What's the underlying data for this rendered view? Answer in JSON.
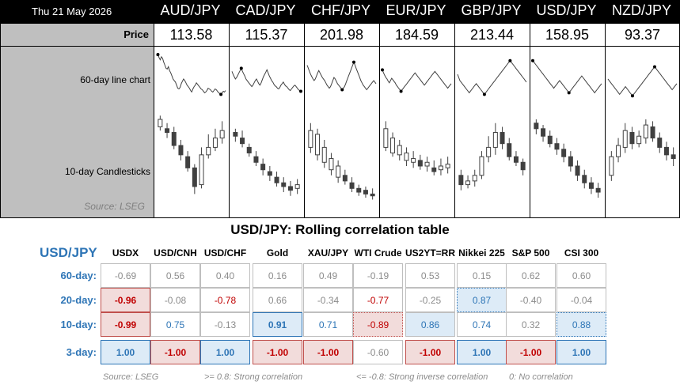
{
  "header": {
    "date": "Thu 21 May 2026",
    "pairs": [
      "AUD/JPY",
      "CAD/JPY",
      "CHF/JPY",
      "EUR/JPY",
      "GBP/JPY",
      "USD/JPY",
      "NZD/JPY"
    ]
  },
  "prices": {
    "label": "Price",
    "values": [
      "113.58",
      "115.37",
      "201.98",
      "184.59",
      "213.44",
      "158.95",
      "93.37"
    ]
  },
  "row_labels": {
    "line": "60-day line chart",
    "candle": "10-day Candlesticks",
    "source": "Source: LSEG"
  },
  "correlation": {
    "title": "USD/JPY: Rolling correlation table",
    "pair": "USD/JPY",
    "columns": [
      "USDX",
      "USD/CNH",
      "USD/CHF",
      "Gold",
      "XAU/JPY",
      "WTI Crude",
      "US2YT=RR",
      "Nikkei 225",
      "S&P 500",
      "CSI 300"
    ],
    "rows": [
      {
        "label": "60-day:",
        "values": [
          "-0.69",
          "0.56",
          "0.40",
          "0.16",
          "0.49",
          "-0.19",
          "0.53",
          "0.15",
          "0.62",
          "0.60"
        ]
      },
      {
        "label": "20-day:",
        "values": [
          "-0.96",
          "-0.08",
          "-0.78",
          "0.66",
          "-0.34",
          "-0.77",
          "-0.25",
          "0.87",
          "-0.40",
          "-0.04"
        ]
      },
      {
        "label": "10-day:",
        "values": [
          "-0.99",
          "0.75",
          "-0.13",
          "0.91",
          "0.71",
          "-0.89",
          "0.86",
          "0.74",
          "0.32",
          "0.88"
        ]
      },
      {
        "label": "3-day:",
        "values": [
          "1.00",
          "-1.00",
          "1.00",
          "-1.00",
          "-1.00",
          "-0.60",
          "-1.00",
          "1.00",
          "-1.00",
          "1.00"
        ]
      }
    ],
    "footer": {
      "source": "Source: LSEG",
      "strong": ">= 0.8: Strong correlation",
      "inverse": "<= -0.8: Strong inverse correlation",
      "none": "0: No correlation"
    }
  },
  "colors": {
    "blue": "#2e75b6",
    "red": "#c00000",
    "fill_red": "#f2dcdb",
    "fill_blue": "#ddebf7"
  },
  "charts": [
    {
      "line": [
        60,
        62,
        58,
        55,
        59,
        57,
        52,
        48,
        44,
        43,
        46,
        41,
        38,
        34,
        30,
        28,
        26,
        22,
        18,
        17,
        19,
        24,
        27,
        30,
        28,
        25,
        22,
        20,
        18,
        15,
        13,
        17,
        20,
        22,
        25,
        23,
        21,
        19,
        17,
        16,
        14,
        12,
        13,
        15,
        18,
        17,
        16,
        14,
        13,
        15,
        17,
        16,
        14,
        12,
        11,
        10,
        12,
        14,
        13,
        15
      ],
      "candles": [
        [
          92,
          100,
          88,
          104
        ],
        [
          90,
          86,
          80,
          96
        ],
        [
          86,
          72,
          68,
          92
        ],
        [
          72,
          62,
          56,
          78
        ],
        [
          60,
          48,
          44,
          66
        ],
        [
          48,
          28,
          20,
          52
        ],
        [
          30,
          62,
          26,
          70
        ],
        [
          62,
          70,
          58,
          84
        ],
        [
          70,
          80,
          66,
          90
        ],
        [
          80,
          88,
          74,
          98
        ]
      ]
    },
    {
      "line": [
        40,
        36,
        33,
        30,
        32,
        35,
        38,
        41,
        44,
        40,
        37,
        34,
        30,
        28,
        26,
        24,
        22,
        20,
        22,
        25,
        28,
        30,
        27,
        24,
        22,
        25,
        29,
        33,
        36,
        39,
        42,
        38,
        34,
        31,
        28,
        26,
        23,
        21,
        20,
        18,
        17,
        19,
        22,
        24,
        26,
        23,
        21,
        20,
        18,
        16,
        15,
        17,
        19,
        21,
        22,
        20,
        18,
        16,
        15,
        14
      ],
      "candles": [
        [
          86,
          82,
          76,
          90
        ],
        [
          80,
          74,
          70,
          88
        ],
        [
          70,
          64,
          60,
          74
        ],
        [
          60,
          54,
          50,
          66
        ],
        [
          52,
          46,
          40,
          58
        ],
        [
          44,
          40,
          34,
          50
        ],
        [
          38,
          32,
          28,
          44
        ],
        [
          32,
          28,
          22,
          38
        ],
        [
          28,
          24,
          18,
          34
        ],
        [
          26,
          30,
          20,
          36
        ]
      ]
    },
    {
      "line": [
        48,
        44,
        40,
        36,
        33,
        30,
        28,
        30,
        34,
        38,
        41,
        38,
        35,
        32,
        30,
        28,
        25,
        22,
        20,
        18,
        20,
        24,
        28,
        32,
        30,
        27,
        24,
        22,
        20,
        18,
        16,
        18,
        20,
        24,
        28,
        32,
        36,
        40,
        44,
        48,
        52,
        48,
        44,
        40,
        36,
        32,
        28,
        25,
        22,
        20,
        18,
        16,
        18,
        20,
        22,
        24,
        26,
        28,
        26,
        24
      ],
      "candles": [
        [
          70,
          88,
          64,
          96
        ],
        [
          62,
          84,
          56,
          90
        ],
        [
          54,
          70,
          48,
          78
        ],
        [
          46,
          58,
          40,
          64
        ],
        [
          38,
          50,
          32,
          56
        ],
        [
          40,
          34,
          30,
          46
        ],
        [
          32,
          26,
          22,
          38
        ],
        [
          26,
          22,
          18,
          30
        ],
        [
          24,
          20,
          16,
          28
        ],
        [
          20,
          18,
          14,
          26
        ]
      ]
    },
    {
      "line": [
        42,
        38,
        35,
        32,
        30,
        27,
        25,
        28,
        31,
        29,
        27,
        25,
        22,
        20,
        18,
        16,
        14,
        16,
        18,
        20,
        22,
        24,
        26,
        28,
        30,
        32,
        34,
        36,
        38,
        36,
        34,
        32,
        30,
        28,
        26,
        24,
        22,
        24,
        26,
        28,
        30,
        32,
        34,
        36,
        38,
        40,
        38,
        36,
        34,
        32,
        30,
        28,
        26,
        24,
        22,
        20,
        18,
        20,
        22,
        24
      ],
      "candles": [
        [
          70,
          90,
          66,
          98
        ],
        [
          64,
          80,
          60,
          86
        ],
        [
          62,
          72,
          56,
          78
        ],
        [
          56,
          64,
          50,
          70
        ],
        [
          54,
          58,
          48,
          66
        ],
        [
          56,
          50,
          46,
          62
        ],
        [
          50,
          54,
          44,
          60
        ],
        [
          48,
          44,
          40,
          56
        ],
        [
          46,
          50,
          40,
          58
        ],
        [
          48,
          52,
          42,
          60
        ]
      ]
    },
    {
      "line": [
        36,
        32,
        28,
        26,
        24,
        22,
        20,
        18,
        16,
        14,
        12,
        14,
        16,
        18,
        20,
        22,
        24,
        22,
        20,
        18,
        16,
        14,
        12,
        10,
        12,
        14,
        16,
        18,
        20,
        22,
        24,
        26,
        28,
        30,
        32,
        34,
        36,
        38,
        40,
        42,
        44,
        46,
        48,
        50,
        52,
        54,
        52,
        50,
        48,
        46,
        44,
        42,
        40,
        38,
        36,
        34,
        32,
        30,
        28,
        26
      ],
      "candles": [
        [
          40,
          30,
          24,
          46
        ],
        [
          30,
          34,
          26,
          40
        ],
        [
          34,
          40,
          28,
          46
        ],
        [
          40,
          60,
          36,
          66
        ],
        [
          60,
          70,
          54,
          82
        ],
        [
          70,
          86,
          62,
          96
        ],
        [
          86,
          74,
          68,
          92
        ],
        [
          74,
          60,
          56,
          80
        ],
        [
          60,
          54,
          50,
          66
        ],
        [
          54,
          46,
          40,
          58
        ]
      ]
    },
    {
      "line": [
        54,
        52,
        50,
        48,
        46,
        44,
        42,
        40,
        38,
        36,
        34,
        32,
        30,
        28,
        26,
        24,
        22,
        20,
        18,
        20,
        22,
        24,
        26,
        28,
        26,
        24,
        22,
        20,
        18,
        16,
        14,
        12,
        14,
        16,
        18,
        20,
        22,
        24,
        26,
        28,
        30,
        32,
        34,
        32,
        30,
        28,
        26,
        24,
        22,
        20,
        18,
        16,
        14,
        12,
        14,
        16,
        18,
        20,
        22,
        24
      ],
      "candles": [
        [
          96,
          90,
          84,
          100
        ],
        [
          90,
          82,
          76,
          94
        ],
        [
          82,
          74,
          70,
          88
        ],
        [
          74,
          68,
          62,
          80
        ],
        [
          68,
          60,
          54,
          74
        ],
        [
          60,
          50,
          44,
          66
        ],
        [
          50,
          40,
          34,
          56
        ],
        [
          40,
          32,
          26,
          46
        ],
        [
          32,
          26,
          20,
          38
        ],
        [
          26,
          22,
          16,
          32
        ]
      ]
    },
    {
      "line": [
        30,
        28,
        26,
        24,
        22,
        20,
        18,
        16,
        14,
        12,
        10,
        12,
        14,
        16,
        18,
        20,
        18,
        16,
        14,
        12,
        10,
        8,
        10,
        12,
        14,
        16,
        18,
        20,
        22,
        24,
        26,
        28,
        30,
        32,
        34,
        36,
        38,
        40,
        42,
        44,
        46,
        44,
        42,
        40,
        38,
        36,
        34,
        32,
        30,
        28,
        26,
        24,
        22,
        20,
        18,
        16,
        18,
        20,
        22,
        24
      ],
      "candles": [
        [
          40,
          60,
          34,
          66
        ],
        [
          60,
          72,
          54,
          80
        ],
        [
          70,
          88,
          64,
          96
        ],
        [
          86,
          74,
          68,
          92
        ],
        [
          74,
          82,
          70,
          88
        ],
        [
          80,
          94,
          74,
          100
        ],
        [
          92,
          80,
          76,
          98
        ],
        [
          80,
          70,
          64,
          86
        ],
        [
          70,
          62,
          56,
          76
        ],
        [
          62,
          58,
          50,
          70
        ]
      ]
    }
  ]
}
